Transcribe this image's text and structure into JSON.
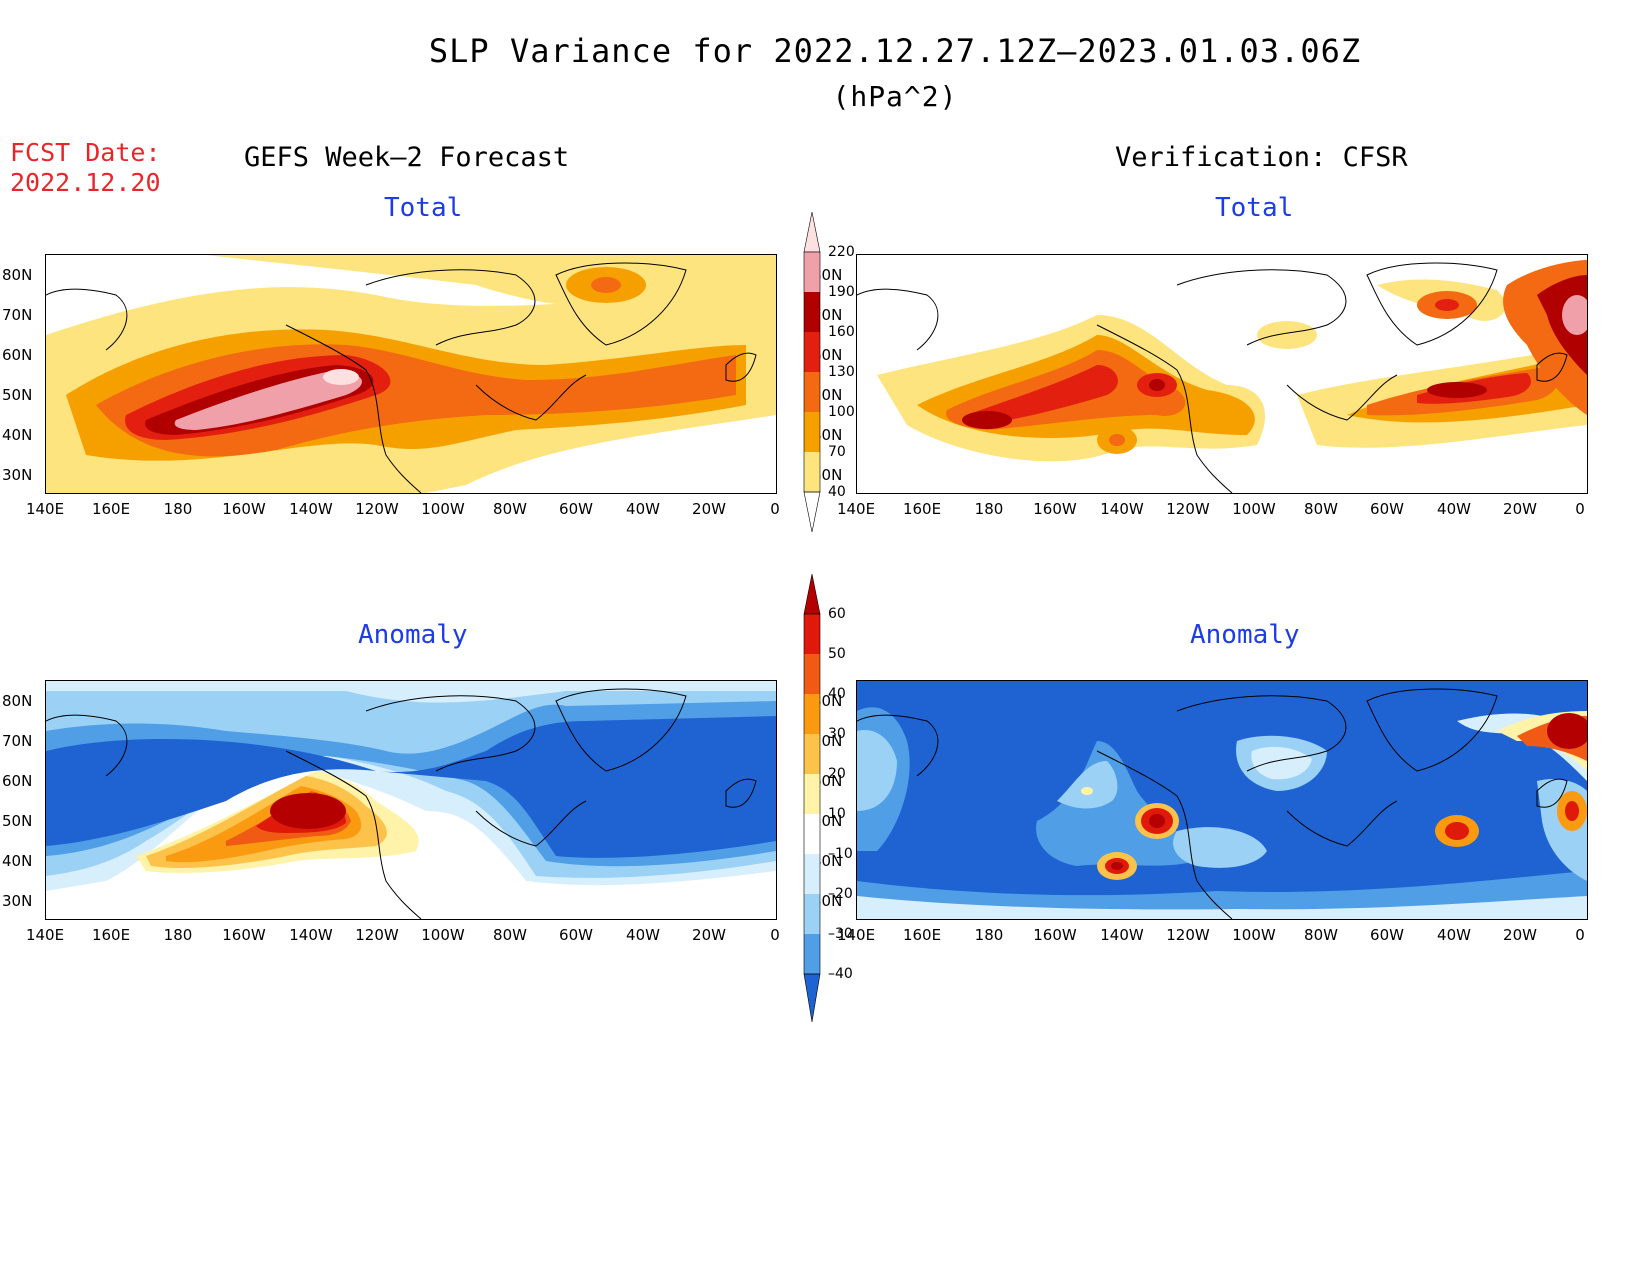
{
  "header": {
    "title": "SLP Variance for 2022.12.27.12Z–2023.01.03.06Z",
    "units": "(hPa^2)",
    "fcst_label": "FCST Date:",
    "fcst_date": "2022.12.20",
    "left_title": "GEFS Week–2 Forecast",
    "right_title": "Verification: CFSR"
  },
  "panels": {
    "gefs_total": {
      "title": "Total"
    },
    "cfsr_total": {
      "title": "Total"
    },
    "gefs_anomaly": {
      "title": "Anomaly"
    },
    "cfsr_anomaly": {
      "title": "Anomaly"
    }
  },
  "axes": {
    "lat_labels": [
      "80N",
      "70N",
      "60N",
      "50N",
      "40N",
      "30N"
    ],
    "lon_labels": [
      "140E",
      "160E",
      "180",
      "160W",
      "140W",
      "120W",
      "100W",
      "80W",
      "60W",
      "40W",
      "20W",
      "0"
    ]
  },
  "colorbars": {
    "total": {
      "levels": [
        "220",
        "190",
        "160",
        "130",
        "100",
        "70",
        "40"
      ],
      "colors": [
        "#fde1e1",
        "#f0a0a8",
        "#b00000",
        "#e32010",
        "#f36a12",
        "#f6a000",
        "#fde47e"
      ]
    },
    "anomaly": {
      "levels": [
        "60",
        "50",
        "40",
        "30",
        "20",
        "10",
        "–10",
        "–20",
        "–30",
        "–40"
      ],
      "colors": [
        "#b40000",
        "#e01a0a",
        "#f05a14",
        "#f99a10",
        "#fcc24a",
        "#fef3a8",
        "#ffffff",
        "#d7effd",
        "#9cd1f6",
        "#4f9ee6",
        "#1f63d3"
      ]
    }
  },
  "map_colors": {
    "ocean_blue": "#1f63d3",
    "mid_blue": "#4f9ee6",
    "light_blue": "#9cd1f6",
    "pale_blue": "#d7effd",
    "yellow": "#fde47e",
    "orange": "#f6a000",
    "dark_orange": "#f36a12",
    "red": "#e32010",
    "dark_red": "#b00000",
    "pink": "#f0a0a8"
  }
}
